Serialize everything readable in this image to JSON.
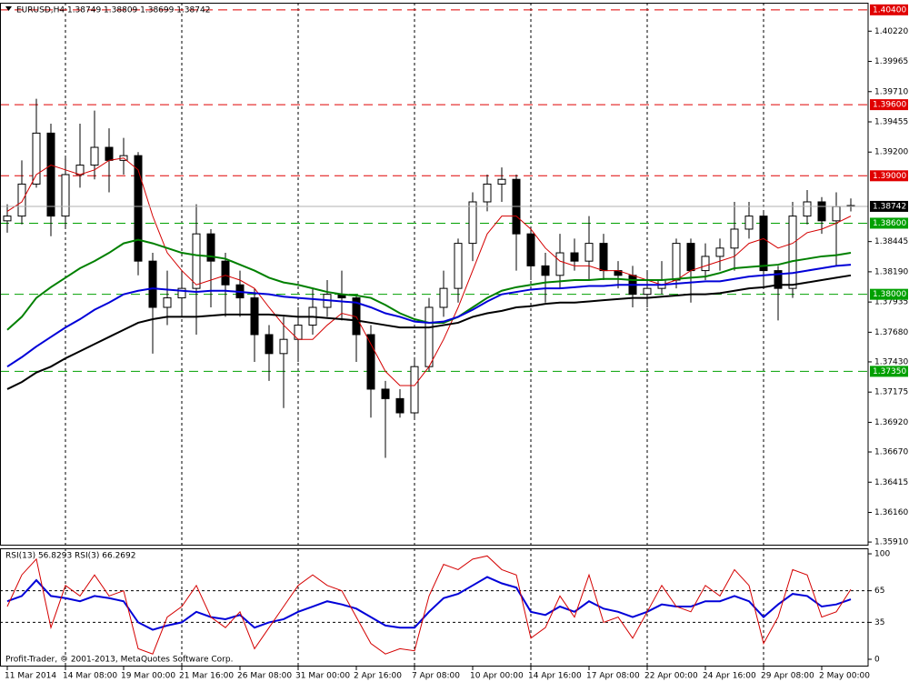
{
  "chart_data": [
    {
      "type": "candlestick",
      "title": "EURUSD,H4  1.38749 1.38809 1.38699 1.38742",
      "categories": [
        "11 Mar 2014",
        null,
        null,
        null,
        "14 Mar 08:00",
        null,
        null,
        null,
        "19 Mar 00:00",
        null,
        null,
        null,
        "21 Mar 16:00",
        null,
        null,
        null,
        "26 Mar 08:00",
        null,
        null,
        null,
        "31 Mar 00:00",
        null,
        null,
        null,
        "2 Apr 16:00",
        null,
        null,
        null,
        "7 Apr 08:00",
        null,
        null,
        null,
        "10 Apr 00:00",
        null,
        null,
        null,
        "14 Apr 16:00",
        null,
        null,
        null,
        "17 Apr 08:00",
        null,
        null,
        null,
        "22 Apr 00:00",
        null,
        null,
        null,
        "24 Apr 16:00",
        null,
        null,
        null,
        "29 Apr 08:00",
        null,
        null,
        null,
        "2 May 00:00",
        null,
        null
      ],
      "open": [
        1.3862,
        1.3866,
        1.3893,
        1.3936,
        1.3866,
        1.3901,
        1.3909,
        1.3924,
        1.3913,
        1.3917,
        1.3828,
        1.3789,
        1.3797,
        1.3805,
        1.3851,
        1.3828,
        1.3808,
        1.3797,
        1.3766,
        1.375,
        1.3762,
        1.3774,
        1.3789,
        1.38,
        1.3797,
        1.3766,
        1.372,
        1.3712,
        1.37,
        1.3739,
        1.3789,
        1.3805,
        1.3843,
        1.3878,
        1.3893,
        1.3897,
        1.3851,
        1.3824,
        1.3816,
        1.3835,
        1.3828,
        1.3843,
        1.382,
        1.3816,
        1.38,
        1.3805,
        1.3812,
        1.3843,
        1.382,
        1.3832,
        1.3839,
        1.3855,
        1.3866,
        1.382,
        1.3805,
        1.3866,
        1.3878,
        1.3862,
        1.38749
      ],
      "high": [
        1.3876,
        1.3913,
        1.3965,
        1.3944,
        1.3917,
        1.3944,
        1.3955,
        1.394,
        1.3932,
        1.392,
        1.3835,
        1.382,
        1.382,
        1.3876,
        1.3855,
        1.3835,
        1.382,
        1.3805,
        1.3774,
        1.3781,
        1.3789,
        1.3805,
        1.3812,
        1.382,
        1.38,
        1.3774,
        1.3727,
        1.372,
        1.3747,
        1.3797,
        1.382,
        1.3847,
        1.3886,
        1.3901,
        1.3907,
        1.3901,
        1.3855,
        1.3835,
        1.3851,
        1.3847,
        1.3866,
        1.3851,
        1.3828,
        1.3824,
        1.382,
        1.3828,
        1.3847,
        1.3847,
        1.3843,
        1.3847,
        1.3878,
        1.3878,
        1.387,
        1.3824,
        1.3878,
        1.3888,
        1.3882,
        1.3886,
        1.38809
      ],
      "low": [
        1.3852,
        1.3859,
        1.389,
        1.3849,
        1.3855,
        1.389,
        1.3897,
        1.3886,
        1.3901,
        1.3816,
        1.375,
        1.3774,
        1.3781,
        1.3766,
        1.3789,
        1.3781,
        1.3781,
        1.3743,
        1.3727,
        1.3704,
        1.3743,
        1.3766,
        1.3781,
        1.3778,
        1.3743,
        1.3696,
        1.3662,
        1.3696,
        1.3696,
        1.3735,
        1.3781,
        1.3793,
        1.3828,
        1.387,
        1.3878,
        1.382,
        1.3812,
        1.3793,
        1.3805,
        1.382,
        1.3812,
        1.3812,
        1.3805,
        1.3789,
        1.3789,
        1.38,
        1.3805,
        1.3793,
        1.3812,
        1.382,
        1.382,
        1.3847,
        1.3806,
        1.3778,
        1.3797,
        1.3859,
        1.3851,
        1.3824,
        1.38699
      ],
      "close": [
        1.3866,
        1.3893,
        1.3936,
        1.3866,
        1.3901,
        1.3909,
        1.3924,
        1.3913,
        1.3917,
        1.3828,
        1.3789,
        1.3797,
        1.3805,
        1.3851,
        1.3828,
        1.3808,
        1.3797,
        1.3766,
        1.375,
        1.3762,
        1.3774,
        1.3789,
        1.38,
        1.3797,
        1.3766,
        1.372,
        1.3712,
        1.37,
        1.3739,
        1.3789,
        1.3805,
        1.3843,
        1.3878,
        1.3893,
        1.3897,
        1.3851,
        1.3824,
        1.3816,
        1.3835,
        1.3828,
        1.3843,
        1.382,
        1.3816,
        1.38,
        1.3805,
        1.3812,
        1.3843,
        1.382,
        1.3832,
        1.3839,
        1.3855,
        1.3866,
        1.382,
        1.3805,
        1.3866,
        1.3878,
        1.3862,
        1.3874,
        1.38742
      ],
      "candle_colors": {
        "up": "#ffffff",
        "down": "#000000",
        "outline": "#000000"
      },
      "series": [
        {
          "color": "#d40000",
          "values": [
            1.387,
            1.3878,
            1.3901,
            1.3909,
            1.3905,
            1.3901,
            1.3905,
            1.3913,
            1.3915,
            1.3905,
            1.3866,
            1.3835,
            1.382,
            1.3808,
            1.3812,
            1.3816,
            1.3812,
            1.3805,
            1.3789,
            1.3774,
            1.3762,
            1.3762,
            1.3774,
            1.3784,
            1.3781,
            1.3758,
            1.3735,
            1.3723,
            1.3723,
            1.3739,
            1.3762,
            1.3789,
            1.382,
            1.3851,
            1.3866,
            1.3866,
            1.3855,
            1.3839,
            1.3828,
            1.3824,
            1.3824,
            1.382,
            1.382,
            1.3816,
            1.3812,
            1.3808,
            1.3812,
            1.382,
            1.3824,
            1.3828,
            1.3832,
            1.3843,
            1.3847,
            1.3839,
            1.3843,
            1.3852,
            1.3855,
            1.386,
            1.3866
          ]
        },
        {
          "color": "#008000",
          "values": [
            1.377,
            1.3781,
            1.3797,
            1.3806,
            1.3814,
            1.3822,
            1.3828,
            1.3835,
            1.3843,
            1.3846,
            1.3843,
            1.3839,
            1.3835,
            1.3833,
            1.3832,
            1.383,
            1.3825,
            1.382,
            1.3814,
            1.381,
            1.3808,
            1.3805,
            1.3802,
            1.38,
            1.3799,
            1.3797,
            1.3791,
            1.3784,
            1.3779,
            1.3776,
            1.3776,
            1.3781,
            1.3789,
            1.3797,
            1.3803,
            1.3806,
            1.3808,
            1.381,
            1.3811,
            1.3812,
            1.3812,
            1.3813,
            1.3813,
            1.3812,
            1.3812,
            1.3812,
            1.3813,
            1.3814,
            1.3815,
            1.3818,
            1.3822,
            1.3823,
            1.3824,
            1.3825,
            1.3828,
            1.383,
            1.3832,
            1.3833,
            1.3835
          ]
        },
        {
          "color": "#0000d8",
          "values": [
            1.3739,
            1.3747,
            1.3756,
            1.3764,
            1.3772,
            1.3779,
            1.3787,
            1.3793,
            1.38,
            1.3803,
            1.3805,
            1.3804,
            1.3803,
            1.3802,
            1.3803,
            1.3803,
            1.3802,
            1.3801,
            1.38,
            1.3798,
            1.3797,
            1.3796,
            1.3795,
            1.3794,
            1.3793,
            1.3789,
            1.3784,
            1.3781,
            1.3777,
            1.3776,
            1.3777,
            1.3781,
            1.3787,
            1.3794,
            1.38,
            1.3802,
            1.3804,
            1.3805,
            1.3805,
            1.3806,
            1.3807,
            1.3807,
            1.3808,
            1.3808,
            1.3808,
            1.3808,
            1.3809,
            1.381,
            1.3811,
            1.3811,
            1.3813,
            1.3815,
            1.3816,
            1.3817,
            1.3818,
            1.382,
            1.3822,
            1.3824,
            1.3825
          ]
        },
        {
          "color": "#000000",
          "values": [
            1.372,
            1.3726,
            1.3734,
            1.3739,
            1.3746,
            1.3752,
            1.3758,
            1.3764,
            1.377,
            1.3776,
            1.3779,
            1.3781,
            1.3781,
            1.3781,
            1.3782,
            1.3783,
            1.3783,
            1.3783,
            1.3783,
            1.3782,
            1.3781,
            1.3781,
            1.378,
            1.3779,
            1.3778,
            1.3776,
            1.3774,
            1.3772,
            1.3772,
            1.3772,
            1.3774,
            1.3776,
            1.3781,
            1.3784,
            1.3786,
            1.3789,
            1.379,
            1.3792,
            1.3793,
            1.3793,
            1.3794,
            1.3795,
            1.3796,
            1.3797,
            1.3797,
            1.3798,
            1.3799,
            1.38,
            1.38,
            1.3801,
            1.3803,
            1.3805,
            1.3806,
            1.3808,
            1.3808,
            1.381,
            1.3812,
            1.3814,
            1.3816
          ]
        }
      ],
      "levels": [
        {
          "value": 1.404,
          "label": "1.40400",
          "color": "#e00000"
        },
        {
          "value": 1.396,
          "label": "1.39600",
          "color": "#e00000"
        },
        {
          "value": 1.39,
          "label": "1.39000",
          "color": "#e00000"
        },
        {
          "value": 1.386,
          "label": "1.38600",
          "color": "#00a000"
        },
        {
          "value": 1.38,
          "label": "1.38000",
          "color": "#00a000"
        },
        {
          "value": 1.3735,
          "label": "1.37350",
          "color": "#00a000"
        }
      ],
      "last": {
        "value": 1.38742,
        "label": "1.38742",
        "color": "#000000"
      },
      "ylim": [
        1.3588,
        1.4046
      ],
      "yticks": [
        {
          "value": 1.4022,
          "label": "1.40220"
        },
        {
          "value": 1.39965,
          "label": "1.39965"
        },
        {
          "value": 1.3971,
          "label": "1.39710"
        },
        {
          "value": 1.39455,
          "label": "1.39455"
        },
        {
          "value": 1.392,
          "label": "1.39200"
        },
        {
          "value": 1.38445,
          "label": "1.38445"
        },
        {
          "value": 1.3819,
          "label": "1.38190"
        },
        {
          "value": 1.37935,
          "label": "1.37935"
        },
        {
          "value": 1.3768,
          "label": "1.37680"
        },
        {
          "value": 1.3743,
          "label": "1.37430"
        },
        {
          "value": 1.37175,
          "label": "1.37175"
        },
        {
          "value": 1.3692,
          "label": "1.36920"
        },
        {
          "value": 1.3667,
          "label": "1.36670"
        },
        {
          "value": 1.36415,
          "label": "1.36415"
        },
        {
          "value": 1.3616,
          "label": "1.36160"
        },
        {
          "value": 1.3591,
          "label": "1.35910"
        }
      ],
      "grid": true
    },
    {
      "type": "line",
      "title": "RSI(13) 56.8293  RSI(3) 66.2692",
      "annotation": "Profit-Trader, © 2001-2013, MetaQuotes Software Corp.",
      "series": [
        {
          "color": "#0000d8",
          "values": [
            55,
            60,
            75,
            60,
            58,
            55,
            60,
            58,
            55,
            35,
            28,
            32,
            35,
            45,
            40,
            38,
            42,
            30,
            35,
            38,
            45,
            50,
            55,
            52,
            48,
            40,
            32,
            30,
            30,
            45,
            58,
            62,
            70,
            78,
            72,
            68,
            45,
            42,
            50,
            45,
            55,
            48,
            45,
            40,
            45,
            52,
            50,
            50,
            55,
            55,
            60,
            55,
            40,
            52,
            62,
            60,
            50,
            52,
            56.8293
          ]
        },
        {
          "color": "#d40000",
          "values": [
            50,
            80,
            95,
            30,
            70,
            60,
            80,
            60,
            65,
            10,
            5,
            40,
            50,
            70,
            40,
            30,
            45,
            10,
            30,
            50,
            70,
            80,
            70,
            65,
            40,
            15,
            5,
            10,
            8,
            60,
            90,
            85,
            95,
            98,
            85,
            80,
            20,
            30,
            60,
            40,
            80,
            35,
            40,
            20,
            45,
            70,
            50,
            45,
            70,
            60,
            85,
            70,
            15,
            40,
            85,
            80,
            40,
            45,
            66.2692
          ]
        }
      ],
      "levels": [
        65,
        35
      ],
      "ylim": [
        -6.9,
        105.2
      ],
      "yticks": [
        100,
        65,
        35,
        0
      ],
      "grid": true
    }
  ]
}
